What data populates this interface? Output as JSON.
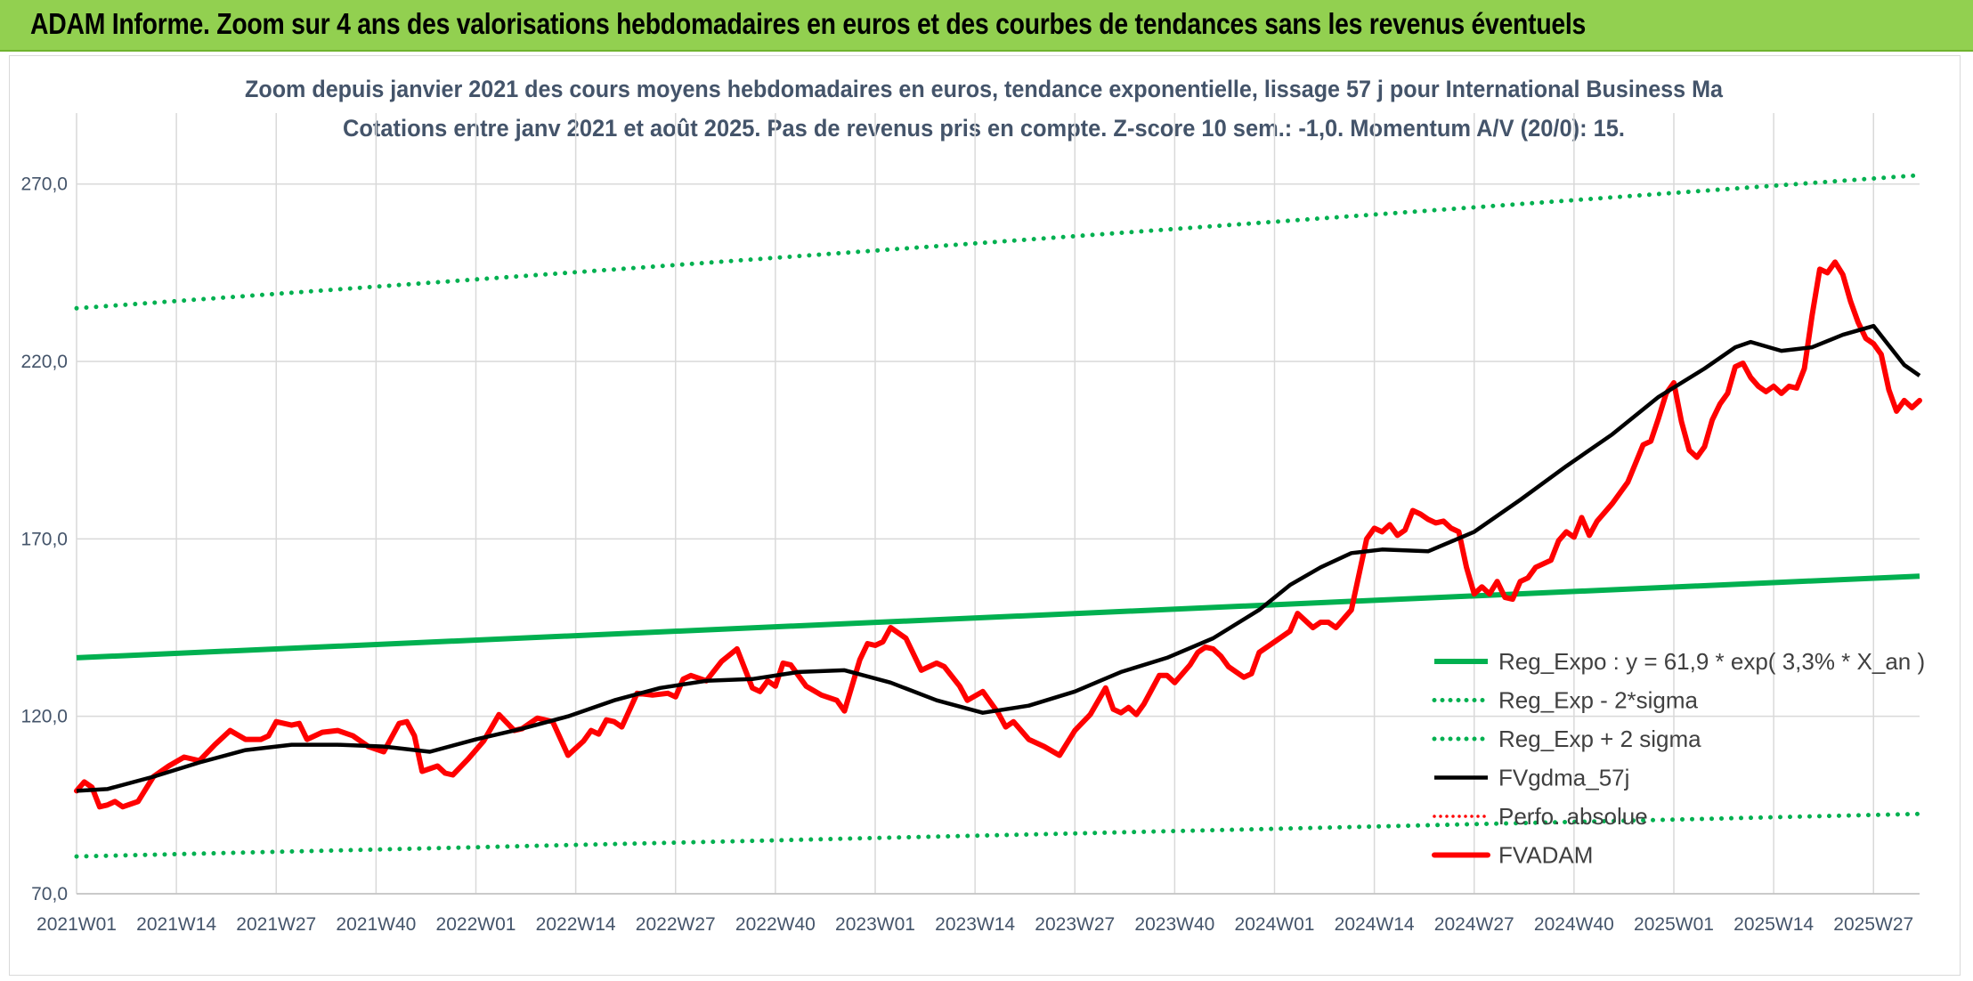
{
  "banner": {
    "title": "ADAM Informe. Zoom sur 4 ans des valorisations hebdomadaires en euros et des courbes de tendances sans les revenus éventuels",
    "color": "#92d050"
  },
  "chart_data": {
    "type": "line",
    "title_line1": "Zoom depuis janvier 2021 des cours moyens hebdomadaires en euros, tendance exponentielle, lissage 57 j pour International Business Ma",
    "title_line2": "Cotations entre janv 2021 et août 2025. Pas de revenus pris en compte. Z-score 10 sem.: -1,0. Momentum A/V (20/0): 15.",
    "ylim": [
      70,
      290
    ],
    "y_ticks": [
      {
        "value": 70,
        "label": "70,0"
      },
      {
        "value": 120,
        "label": "120,0"
      },
      {
        "value": 170,
        "label": "170,0"
      },
      {
        "value": 220,
        "label": "220,0"
      },
      {
        "value": 270,
        "label": "270,0"
      }
    ],
    "x_count": 241,
    "x_ticks": [
      {
        "index": 0,
        "label": "2021W01"
      },
      {
        "index": 13,
        "label": "2021W14"
      },
      {
        "index": 26,
        "label": "2021W27"
      },
      {
        "index": 39,
        "label": "2021W40"
      },
      {
        "index": 52,
        "label": "2022W01"
      },
      {
        "index": 65,
        "label": "2022W14"
      },
      {
        "index": 78,
        "label": "2022W27"
      },
      {
        "index": 91,
        "label": "2022W40"
      },
      {
        "index": 104,
        "label": "2023W01"
      },
      {
        "index": 117,
        "label": "2023W14"
      },
      {
        "index": 130,
        "label": "2023W27"
      },
      {
        "index": 143,
        "label": "2023W40"
      },
      {
        "index": 156,
        "label": "2024W01"
      },
      {
        "index": 169,
        "label": "2024W14"
      },
      {
        "index": 182,
        "label": "2024W27"
      },
      {
        "index": 195,
        "label": "2024W40"
      },
      {
        "index": 208,
        "label": "2025W01"
      },
      {
        "index": 221,
        "label": "2025W14"
      },
      {
        "index": 234,
        "label": "2025W27"
      }
    ],
    "grid": true,
    "legend_position": "bottom-right",
    "series": [
      {
        "name": "Reg_Expo : y = 61,9 * exp( 3,3% *  X_an )",
        "color": "#00b050",
        "style": "solid",
        "points": [
          [
            0,
            136.5
          ],
          [
            240,
            159.5
          ]
        ]
      },
      {
        "name": "Reg_Exp - 2*sigma",
        "color": "#00b050",
        "style": "dotted",
        "points": [
          [
            0,
            80.5
          ],
          [
            240,
            92.5
          ]
        ]
      },
      {
        "name": "Reg_Exp + 2 sigma",
        "color": "#00b050",
        "style": "dotted",
        "points": [
          [
            0,
            235
          ],
          [
            240,
            272.5
          ]
        ]
      },
      {
        "name": "FVgdma_57j",
        "color": "#000000",
        "style": "solid",
        "points": [
          [
            0,
            99
          ],
          [
            4,
            99.5
          ],
          [
            10,
            103
          ],
          [
            16,
            107
          ],
          [
            22,
            110.5
          ],
          [
            28,
            112
          ],
          [
            34,
            112
          ],
          [
            40,
            111.5
          ],
          [
            46,
            110
          ],
          [
            52,
            113.5
          ],
          [
            58,
            116.5
          ],
          [
            64,
            120
          ],
          [
            70,
            124.5
          ],
          [
            76,
            128
          ],
          [
            82,
            130
          ],
          [
            88,
            130.5
          ],
          [
            94,
            132.5
          ],
          [
            100,
            133
          ],
          [
            106,
            129.5
          ],
          [
            112,
            124.5
          ],
          [
            118,
            121
          ],
          [
            124,
            123
          ],
          [
            130,
            127
          ],
          [
            136,
            132.5
          ],
          [
            142,
            136.5
          ],
          [
            148,
            142
          ],
          [
            154,
            150
          ],
          [
            158,
            157
          ],
          [
            162,
            162
          ],
          [
            166,
            166
          ],
          [
            170,
            167
          ],
          [
            176,
            166.5
          ],
          [
            182,
            172
          ],
          [
            188,
            181
          ],
          [
            194,
            190.5
          ],
          [
            200,
            199.5
          ],
          [
            206,
            210
          ],
          [
            212,
            218
          ],
          [
            216,
            224
          ],
          [
            218,
            225.5
          ],
          [
            222,
            223
          ],
          [
            226,
            224
          ],
          [
            230,
            227.5
          ],
          [
            234,
            230
          ],
          [
            238,
            219
          ],
          [
            240,
            216
          ]
        ]
      },
      {
        "name": "Perfo. absolue",
        "color": "#ff0000",
        "style": "dotted",
        "points": []
      },
      {
        "name": "FVADAM",
        "color": "#ff0000",
        "style": "solid-thick",
        "points": [
          [
            0,
            99
          ],
          [
            1,
            101.5
          ],
          [
            2,
            100
          ],
          [
            3,
            94.5
          ],
          [
            4,
            95
          ],
          [
            5,
            96
          ],
          [
            6,
            94.5
          ],
          [
            8,
            96
          ],
          [
            10,
            103
          ],
          [
            12,
            106
          ],
          [
            14,
            108.5
          ],
          [
            15,
            108
          ],
          [
            16,
            107.5
          ],
          [
            18,
            112
          ],
          [
            20,
            116
          ],
          [
            22,
            113.5
          ],
          [
            24,
            113.5
          ],
          [
            25,
            114.5
          ],
          [
            26,
            118.5
          ],
          [
            28,
            117.5
          ],
          [
            29,
            118
          ],
          [
            30,
            113.5
          ],
          [
            32,
            115.5
          ],
          [
            34,
            116
          ],
          [
            36,
            114.5
          ],
          [
            38,
            111.5
          ],
          [
            40,
            110
          ],
          [
            42,
            118
          ],
          [
            43,
            118.5
          ],
          [
            44,
            114.5
          ],
          [
            45,
            104.5
          ],
          [
            47,
            106
          ],
          [
            48,
            104
          ],
          [
            49,
            103.5
          ],
          [
            51,
            108
          ],
          [
            53,
            113
          ],
          [
            55,
            120.5
          ],
          [
            57,
            116
          ],
          [
            58,
            116.5
          ],
          [
            60,
            119.5
          ],
          [
            62,
            118.5
          ],
          [
            64,
            109
          ],
          [
            66,
            113
          ],
          [
            67,
            116
          ],
          [
            68,
            115
          ],
          [
            69,
            119
          ],
          [
            70,
            118.5
          ],
          [
            71,
            117
          ],
          [
            73,
            126.5
          ],
          [
            75,
            126
          ],
          [
            77,
            126.5
          ],
          [
            78,
            125.5
          ],
          [
            79,
            130.5
          ],
          [
            80,
            131.5
          ],
          [
            82,
            130
          ],
          [
            84,
            135.5
          ],
          [
            86,
            139
          ],
          [
            88,
            128
          ],
          [
            89,
            127
          ],
          [
            90,
            130
          ],
          [
            91,
            128.5
          ],
          [
            92,
            135
          ],
          [
            93,
            134.5
          ],
          [
            95,
            128.5
          ],
          [
            97,
            126
          ],
          [
            99,
            124.5
          ],
          [
            100,
            121.5
          ],
          [
            102,
            136
          ],
          [
            103,
            140.5
          ],
          [
            104,
            140
          ],
          [
            105,
            141
          ],
          [
            106,
            145
          ],
          [
            108,
            142
          ],
          [
            110,
            133
          ],
          [
            112,
            135
          ],
          [
            113,
            134
          ],
          [
            115,
            128.5
          ],
          [
            116,
            124.5
          ],
          [
            118,
            127
          ],
          [
            120,
            121
          ],
          [
            121,
            117
          ],
          [
            122,
            118.5
          ],
          [
            124,
            113.5
          ],
          [
            126,
            111.5
          ],
          [
            128,
            109
          ],
          [
            130,
            116
          ],
          [
            132,
            120.5
          ],
          [
            134,
            128
          ],
          [
            135,
            122
          ],
          [
            136,
            121
          ],
          [
            137,
            122.5
          ],
          [
            138,
            120.5
          ],
          [
            139,
            123.5
          ],
          [
            141,
            131.5
          ],
          [
            142,
            131.5
          ],
          [
            143,
            129.5
          ],
          [
            145,
            134.5
          ],
          [
            146,
            138
          ],
          [
            147,
            139.5
          ],
          [
            148,
            139
          ],
          [
            149,
            137
          ],
          [
            150,
            134
          ],
          [
            152,
            131
          ],
          [
            153,
            132
          ],
          [
            154,
            138
          ],
          [
            156,
            141
          ],
          [
            158,
            144
          ],
          [
            159,
            149
          ],
          [
            161,
            145
          ],
          [
            162,
            146.5
          ],
          [
            163,
            146.5
          ],
          [
            164,
            145
          ],
          [
            166,
            150
          ],
          [
            168,
            170
          ],
          [
            169,
            173
          ],
          [
            170,
            172
          ],
          [
            171,
            174
          ],
          [
            172,
            171
          ],
          [
            173,
            172.5
          ],
          [
            174,
            178
          ],
          [
            175,
            177
          ],
          [
            176,
            175.5
          ],
          [
            177,
            174.5
          ],
          [
            178,
            175
          ],
          [
            179,
            173
          ],
          [
            180,
            172
          ],
          [
            181,
            162
          ],
          [
            182,
            154.5
          ],
          [
            183,
            156.5
          ],
          [
            184,
            154.5
          ],
          [
            185,
            158
          ],
          [
            186,
            153.5
          ],
          [
            187,
            153
          ],
          [
            188,
            158
          ],
          [
            189,
            159
          ],
          [
            190,
            162
          ],
          [
            192,
            164
          ],
          [
            193,
            169.5
          ],
          [
            194,
            172
          ],
          [
            195,
            170.5
          ],
          [
            196,
            176
          ],
          [
            197,
            171
          ],
          [
            198,
            175
          ],
          [
            200,
            180
          ],
          [
            202,
            186
          ],
          [
            204,
            196.5
          ],
          [
            205,
            197.5
          ],
          [
            206,
            204
          ],
          [
            207,
            211
          ],
          [
            208,
            214
          ],
          [
            209,
            203
          ],
          [
            210,
            195
          ],
          [
            211,
            193
          ],
          [
            212,
            196
          ],
          [
            213,
            203.5
          ],
          [
            214,
            208
          ],
          [
            215,
            211
          ],
          [
            216,
            218.5
          ],
          [
            217,
            219.5
          ],
          [
            218,
            215.5
          ],
          [
            219,
            213
          ],
          [
            220,
            211.5
          ],
          [
            221,
            213
          ],
          [
            222,
            211
          ],
          [
            223,
            213
          ],
          [
            224,
            212.5
          ],
          [
            225,
            218
          ],
          [
            226,
            233
          ],
          [
            227,
            246
          ],
          [
            228,
            245
          ],
          [
            229,
            248
          ],
          [
            230,
            244.5
          ],
          [
            231,
            237
          ],
          [
            232,
            231
          ],
          [
            233,
            226.5
          ],
          [
            234,
            225
          ],
          [
            235,
            222
          ],
          [
            236,
            212
          ],
          [
            237,
            206
          ],
          [
            238,
            209
          ],
          [
            239,
            207
          ],
          [
            240,
            209
          ]
        ]
      }
    ]
  }
}
